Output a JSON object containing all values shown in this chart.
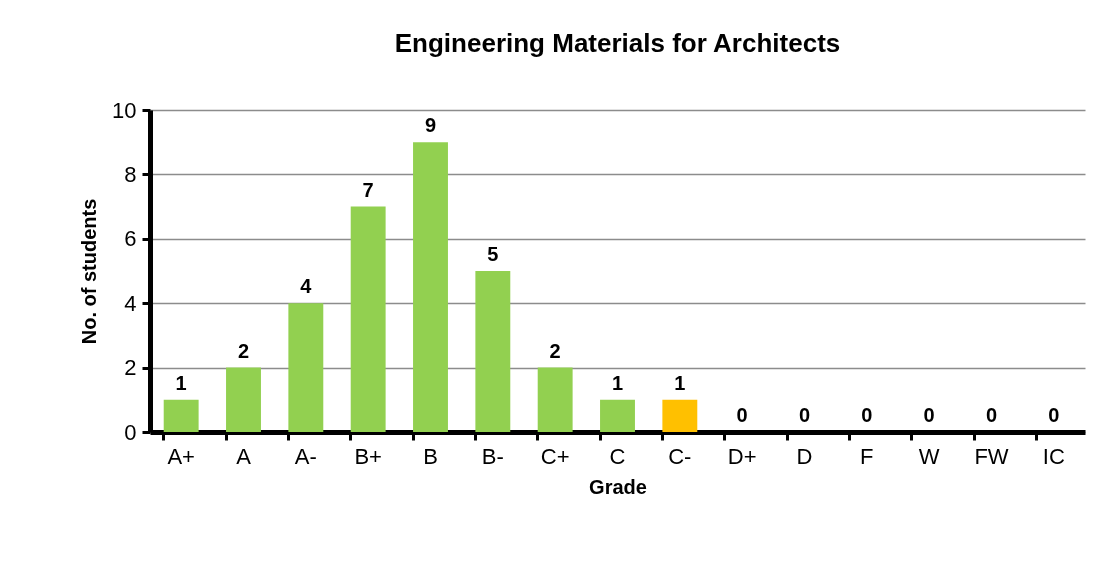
{
  "chart_data": {
    "type": "bar",
    "title": "Engineering Materials for Architects",
    "xlabel": "Grade",
    "ylabel": "No. of students",
    "categories": [
      "A+",
      "A",
      "A-",
      "B+",
      "B",
      "B-",
      "C+",
      "C",
      "C-",
      "D+",
      "D",
      "F",
      "W",
      "FW",
      "IC"
    ],
    "values": [
      1,
      2,
      4,
      7,
      9,
      5,
      2,
      1,
      1,
      0,
      0,
      0,
      0,
      0,
      0
    ],
    "colors": [
      "#92d050",
      "#92d050",
      "#92d050",
      "#92d050",
      "#92d050",
      "#92d050",
      "#92d050",
      "#92d050",
      "#ffc000",
      "#92d050",
      "#92d050",
      "#92d050",
      "#92d050",
      "#92d050",
      "#92d050"
    ],
    "ylim": [
      0,
      10
    ],
    "yticks": [
      0,
      2,
      4,
      6,
      8,
      10
    ],
    "grid": "y",
    "data_labels": true
  }
}
